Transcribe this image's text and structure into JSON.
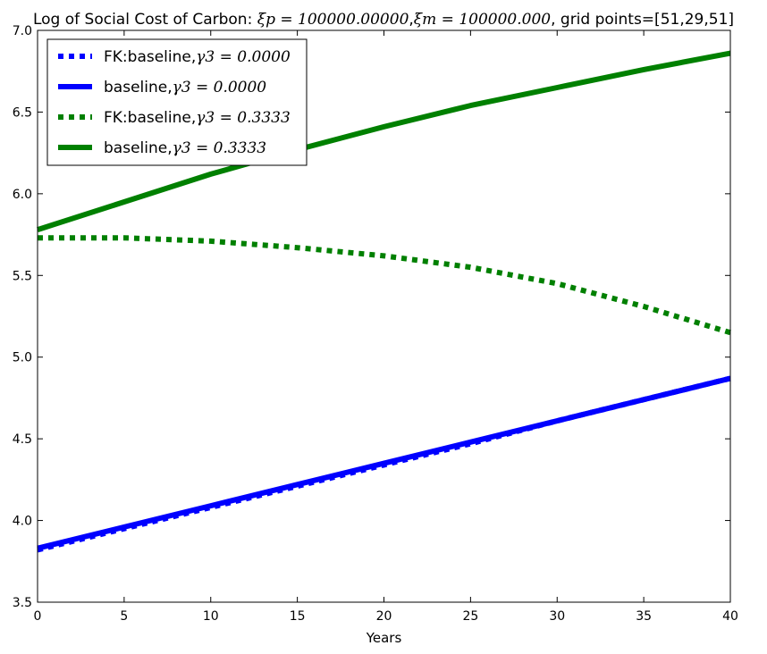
{
  "chart_data": {
    "type": "line",
    "title": {
      "prefix": "Log of Social Cost of Carbon: ",
      "xi_p": "ξp = 100000.00000",
      "sep": ",",
      "xi_m": "ξm = 100000.000",
      "suffix": ", grid points=[51,29,51]"
    },
    "xlabel": "Years",
    "ylabel": "",
    "xlim": [
      0,
      40
    ],
    "ylim": [
      3.5,
      7.0
    ],
    "xticks": [
      0,
      5,
      10,
      15,
      20,
      25,
      30,
      35,
      40
    ],
    "yticks": [
      3.5,
      4.0,
      4.5,
      5.0,
      5.5,
      6.0,
      6.5,
      7.0
    ],
    "xtick_labels": [
      "0",
      "5",
      "10",
      "15",
      "20",
      "25",
      "30",
      "35",
      "40"
    ],
    "ytick_labels": [
      "3.5",
      "4.0",
      "4.5",
      "5.0",
      "5.5",
      "6.0",
      "6.5",
      "7.0"
    ],
    "grid": false,
    "legend_position": "top-left",
    "x": [
      0,
      5,
      10,
      15,
      20,
      25,
      30,
      35,
      40
    ],
    "series": [
      {
        "name": "FK:baseline,γ3 = 0.0000",
        "label_text": "FK:baseline,",
        "label_math": "γ3 = 0.0000",
        "color": "#0000ff",
        "style": "dotted",
        "values": [
          3.82,
          3.95,
          4.08,
          4.21,
          4.34,
          4.47,
          4.61,
          4.74,
          4.87
        ]
      },
      {
        "name": "baseline,γ3 = 0.0000",
        "label_text": "baseline,",
        "label_math": "γ3 = 0.0000",
        "color": "#0000ff",
        "style": "solid",
        "values": [
          3.83,
          3.96,
          4.09,
          4.22,
          4.35,
          4.48,
          4.61,
          4.74,
          4.87
        ]
      },
      {
        "name": "FK:baseline,γ3 = 0.3333",
        "label_text": "FK:baseline,",
        "label_math": "γ3 = 0.3333",
        "color": "#008000",
        "style": "dotted",
        "values": [
          5.73,
          5.73,
          5.71,
          5.67,
          5.62,
          5.55,
          5.45,
          5.31,
          5.15
        ]
      },
      {
        "name": "baseline,γ3 = 0.3333",
        "label_text": "baseline,",
        "label_math": "γ3 = 0.3333",
        "color": "#008000",
        "style": "solid",
        "values": [
          5.78,
          5.95,
          6.12,
          6.27,
          6.41,
          6.54,
          6.65,
          6.76,
          6.86
        ]
      }
    ]
  }
}
